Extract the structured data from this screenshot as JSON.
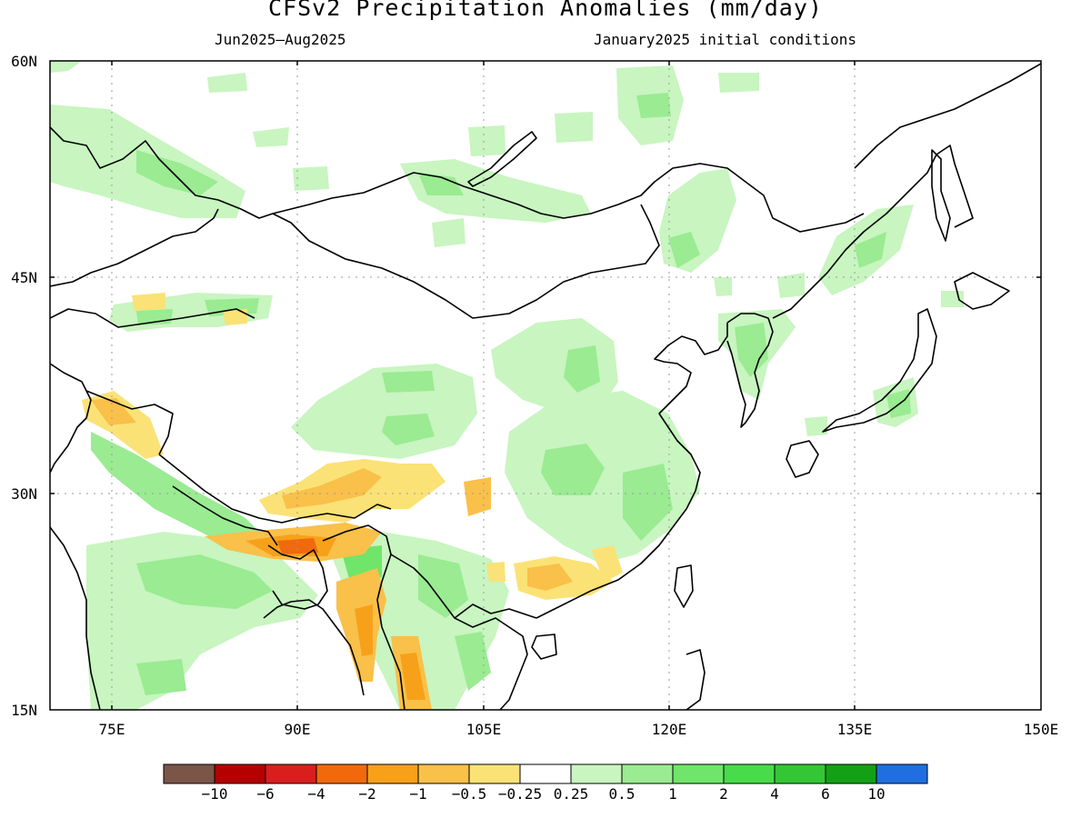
{
  "title": "CFSv2 Precipitation Anomalies (mm/day)",
  "subtitle_left": "Jun2025–Aug2025",
  "subtitle_right": "January2025 initial conditions",
  "map": {
    "lon_range": [
      70,
      150
    ],
    "lat_range": [
      15,
      60
    ],
    "x_ticks": [
      "75E",
      "90E",
      "105E",
      "120E",
      "135E",
      "150E"
    ],
    "y_ticks": [
      "60N",
      "45N",
      "30N",
      "15N"
    ]
  },
  "colorbar": {
    "colors": [
      "#7a5548",
      "#b50000",
      "#d91e1e",
      "#f06a0d",
      "#f7a11a",
      "#f9c04a",
      "#fbe276",
      "#ffffff",
      "#c8f5c0",
      "#9aeb92",
      "#6fe56a",
      "#48db4a",
      "#34c634",
      "#14a014",
      "#1f6fe0"
    ],
    "labels": [
      "−10",
      "−6",
      "−4",
      "−2",
      "−1",
      "−0.5",
      "−0.25",
      "0.25",
      "0.5",
      "1",
      "2",
      "4",
      "6",
      "10"
    ]
  }
}
